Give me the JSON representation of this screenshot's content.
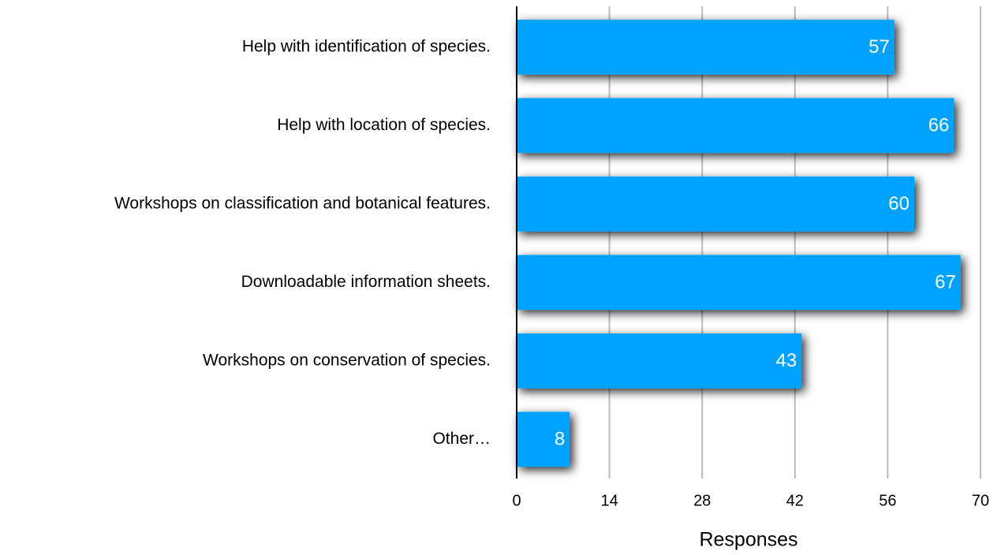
{
  "chart_data": {
    "type": "bar",
    "orientation": "horizontal",
    "x_label": "Responses",
    "categories": [
      "Help with identification of species.",
      "Help with location of species.",
      "Workshops on classification and botanical features.",
      "Downloadable information sheets.",
      "Workshops on conservation of species.",
      "Other…"
    ],
    "values": [
      57,
      66,
      60,
      67,
      43,
      8
    ],
    "color": "#00a2ff",
    "xlim": [
      0,
      70
    ],
    "xticks": [
      0,
      14,
      28,
      42,
      56,
      70
    ],
    "grid": true,
    "data_labels": true,
    "shadow": true
  }
}
